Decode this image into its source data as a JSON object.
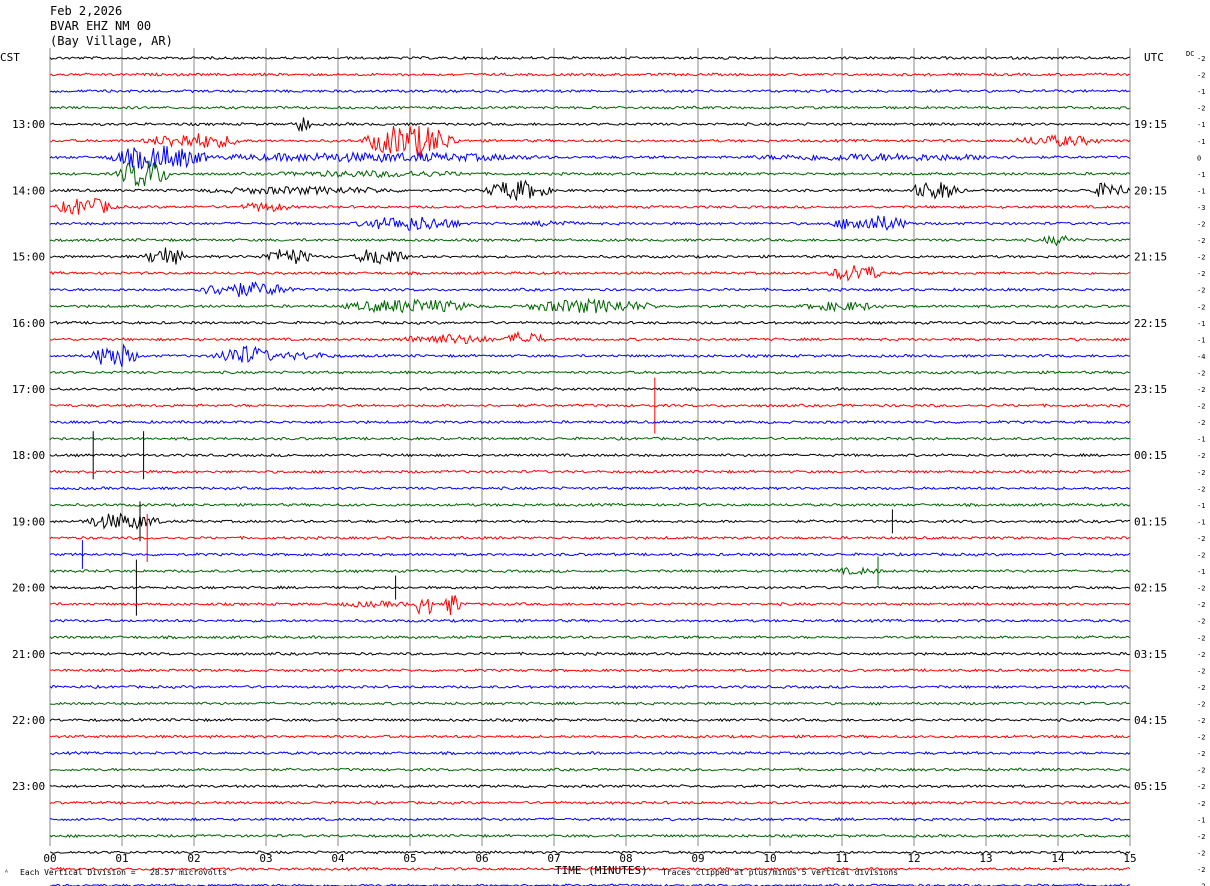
{
  "header": {
    "date": "Feb 2,2026",
    "station": "BVAR EHZ NM 00",
    "location": "(Bay Village, AR)"
  },
  "axis": {
    "left_timezone": "CST",
    "right_timezone": "UTC",
    "dc_label": "DC",
    "xlabel": "TIME (MINUTES)"
  },
  "footer": {
    "scale_note": "Each Vertical Division =   28.57 microvolts",
    "clip_note": "Traces clipped at plus/minus 5 vertical divisions"
  },
  "chart_data": {
    "type": "line",
    "x_ticks": [
      "00",
      "01",
      "02",
      "03",
      "04",
      "05",
      "06",
      "07",
      "08",
      "09",
      "10",
      "11",
      "12",
      "13",
      "14",
      "15"
    ],
    "xlim": [
      0,
      15
    ],
    "trace_colors": [
      "#000000",
      "#ff0000",
      "#0000ff",
      "#006400"
    ],
    "left_hour_labels": [
      "13:00",
      "14:00",
      "15:00",
      "16:00",
      "17:00",
      "18:00",
      "19:00",
      "20:00",
      "21:00",
      "22:00",
      "23:00"
    ],
    "right_hour_labels": [
      "19:15",
      "20:15",
      "21:15",
      "22:15",
      "23:15",
      "00:15",
      "01:15",
      "02:15",
      "03:15",
      "04:15",
      "05:15"
    ],
    "dc_offsets": [
      -2,
      -2,
      -1,
      -2,
      -1,
      -1,
      0,
      -1,
      -1,
      -3,
      -2,
      -2,
      -2,
      -2,
      -2,
      -2,
      -1,
      -1,
      -4,
      -2,
      -2,
      -2,
      -2,
      -1,
      -2,
      -2,
      -2,
      -1,
      -1,
      -2,
      -2,
      -1,
      -2,
      -2,
      -2,
      -2,
      -2,
      -2,
      -2,
      -2,
      -2,
      -2,
      -2,
      -2,
      -2,
      -2,
      -1,
      -2,
      -2,
      -2,
      -2,
      -2
    ],
    "events": [
      {
        "trace": 4,
        "center": 3.5,
        "width": 0.25,
        "amp": 1.8
      },
      {
        "trace": 5,
        "center": 2.0,
        "width": 1.5,
        "amp": 1.5
      },
      {
        "trace": 5,
        "center": 5.0,
        "width": 1.4,
        "amp": 3.5
      },
      {
        "trace": 5,
        "center": 14.0,
        "width": 1.3,
        "amp": 1.0
      },
      {
        "trace": 6,
        "center": 1.5,
        "width": 1.5,
        "amp": 2.5
      },
      {
        "trace": 6,
        "center": 4.5,
        "width": 5.0,
        "amp": 0.8
      },
      {
        "trace": 6,
        "center": 11.5,
        "width": 4.0,
        "amp": 0.6
      },
      {
        "trace": 7,
        "center": 1.3,
        "width": 0.8,
        "amp": 3.0
      },
      {
        "trace": 7,
        "center": 4.5,
        "width": 3.0,
        "amp": 0.5
      },
      {
        "trace": 8,
        "center": 6.5,
        "width": 1.0,
        "amp": 2.0
      },
      {
        "trace": 8,
        "center": 12.3,
        "width": 0.8,
        "amp": 1.8
      },
      {
        "trace": 8,
        "center": 14.7,
        "width": 0.6,
        "amp": 1.5
      },
      {
        "trace": 8,
        "center": 3.5,
        "width": 3.0,
        "amp": 0.6
      },
      {
        "trace": 9,
        "center": 0.5,
        "width": 0.9,
        "amp": 1.8
      },
      {
        "trace": 9,
        "center": 3.0,
        "width": 0.8,
        "amp": 0.8
      },
      {
        "trace": 10,
        "center": 5.0,
        "width": 1.6,
        "amp": 1.4
      },
      {
        "trace": 10,
        "center": 11.4,
        "width": 1.2,
        "amp": 1.6
      },
      {
        "trace": 10,
        "center": 7.0,
        "width": 0.7,
        "amp": 0.5
      },
      {
        "trace": 11,
        "center": 14.0,
        "width": 0.5,
        "amp": 0.9
      },
      {
        "trace": 12,
        "center": 1.6,
        "width": 0.6,
        "amp": 2.0
      },
      {
        "trace": 12,
        "center": 3.3,
        "width": 0.8,
        "amp": 1.6
      },
      {
        "trace": 12,
        "center": 4.6,
        "width": 0.8,
        "amp": 1.8
      },
      {
        "trace": 13,
        "center": 11.2,
        "width": 0.8,
        "amp": 1.8
      },
      {
        "trace": 14,
        "center": 2.7,
        "width": 1.5,
        "amp": 1.4
      },
      {
        "trace": 15,
        "center": 5.0,
        "width": 2.0,
        "amp": 1.3
      },
      {
        "trace": 15,
        "center": 7.5,
        "width": 2.0,
        "amp": 1.3
      },
      {
        "trace": 15,
        "center": 11.0,
        "width": 1.2,
        "amp": 0.8
      },
      {
        "trace": 17,
        "center": 5.5,
        "width": 1.5,
        "amp": 0.9
      },
      {
        "trace": 17,
        "center": 6.6,
        "width": 0.6,
        "amp": 1.5
      },
      {
        "trace": 18,
        "center": 0.9,
        "width": 0.7,
        "amp": 2.6
      },
      {
        "trace": 18,
        "center": 2.7,
        "width": 0.9,
        "amp": 2.0
      },
      {
        "trace": 18,
        "center": 3.5,
        "width": 1.0,
        "amp": 0.6
      },
      {
        "trace": 28,
        "center": 1.0,
        "width": 1.2,
        "amp": 1.6
      },
      {
        "trace": 31,
        "center": 11.2,
        "width": 0.8,
        "amp": 0.5
      },
      {
        "trace": 33,
        "center": 5.2,
        "width": 0.25,
        "amp": 3.0
      },
      {
        "trace": 33,
        "center": 5.6,
        "width": 0.25,
        "amp": 2.5
      },
      {
        "trace": 33,
        "center": 4.5,
        "width": 1.2,
        "amp": 0.4
      }
    ],
    "spikes": [
      {
        "trace": 21,
        "x": 8.4,
        "amp": 3.5
      },
      {
        "trace": 24,
        "x": 0.6,
        "amp": 3.0
      },
      {
        "trace": 24,
        "x": 1.3,
        "amp": 3.0
      },
      {
        "trace": 28,
        "x": 1.25,
        "amp": 2.5
      },
      {
        "trace": 28,
        "x": 11.7,
        "amp": 1.5
      },
      {
        "trace": 29,
        "x": 1.35,
        "amp": 3.0
      },
      {
        "trace": 30,
        "x": 0.45,
        "amp": 1.8
      },
      {
        "trace": 31,
        "x": 11.5,
        "amp": 1.8
      },
      {
        "trace": 32,
        "x": 1.2,
        "amp": 3.5
      },
      {
        "trace": 32,
        "x": 4.8,
        "amp": 1.5
      }
    ]
  }
}
